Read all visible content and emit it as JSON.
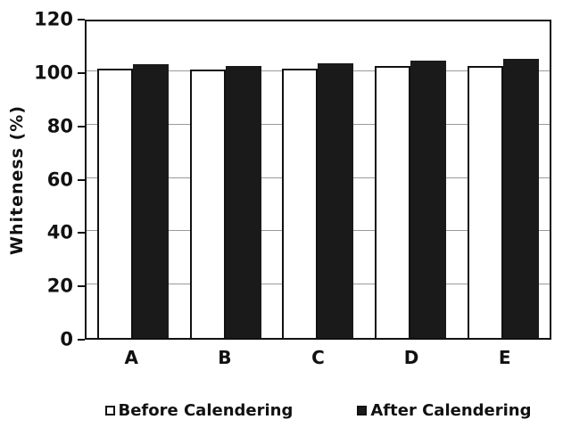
{
  "chart_data": {
    "type": "bar",
    "categories": [
      "A",
      "B",
      "C",
      "D",
      "E"
    ],
    "series": [
      {
        "name": "Before Calendering",
        "values": [
          101,
          100.5,
          101,
          102,
          102
        ],
        "fill": "#ffffff",
        "border": "#1a1a1a"
      },
      {
        "name": "After Calendering",
        "values": [
          102.5,
          102,
          103,
          104,
          104.5
        ],
        "fill": "#1a1a1a",
        "border": "#1a1a1a"
      }
    ],
    "title": "",
    "xlabel": "",
    "ylabel": "Whiteness (%)",
    "ylim": [
      0,
      120
    ],
    "ytick_step": 20,
    "grid": "horizontal",
    "legend_position": "bottom"
  }
}
